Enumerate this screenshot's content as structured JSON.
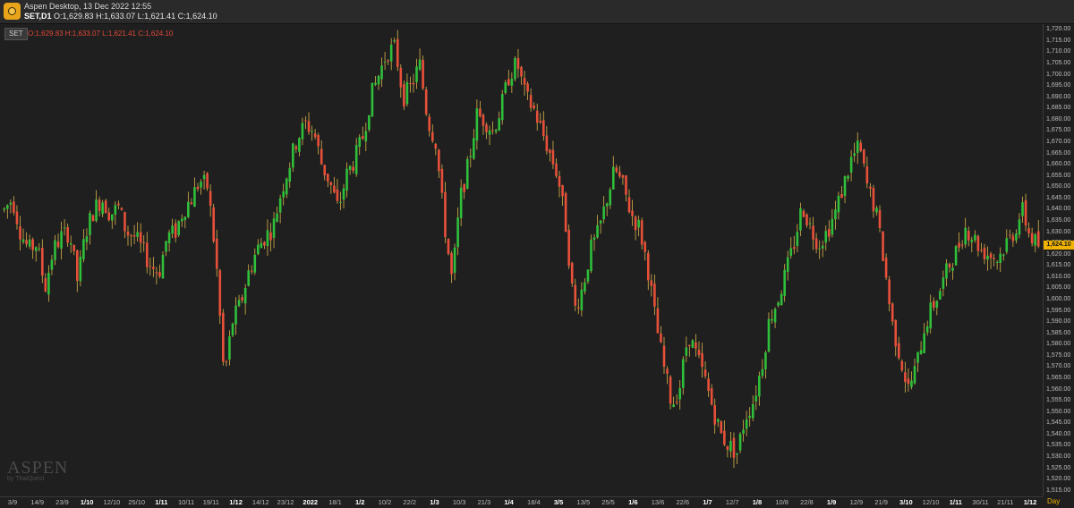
{
  "window": {
    "title": "Aspen Desktop, 13 Dec 2022 12:55",
    "symbol_timeframe": "SET,D1",
    "ohlc": "O:1,629.83 H:1,633.07 L:1,621.41 C:1,624.10"
  },
  "chart_overlay": {
    "symbol_badge": "SET",
    "ohlc": "O:1,629.83  H:1,633.07  L:1,621.41  C:1,624.10"
  },
  "watermark": {
    "brand": "ASPEN",
    "by": "by ThaiQuest"
  },
  "colors": {
    "up": "#2fbf3a",
    "down": "#e8503a",
    "background": "#1f1f1f",
    "last_price_tag": "#f0b400"
  },
  "x_axis_unit": "Day",
  "chart_data": {
    "type": "candlestick",
    "symbol": "SET",
    "timeframe": "D1",
    "last_price": "1,624.10",
    "ylim": [
      1512.5,
      1722.5
    ],
    "y_ticks": [
      "1,720.00",
      "1,715.00",
      "1,710.00",
      "1,705.00",
      "1,700.00",
      "1,695.00",
      "1,690.00",
      "1,685.00",
      "1,680.00",
      "1,675.00",
      "1,670.00",
      "1,665.00",
      "1,660.00",
      "1,655.00",
      "1,650.00",
      "1,645.00",
      "1,640.00",
      "1,635.00",
      "1,630.00",
      "1,625.00",
      "1,620.00",
      "1,615.00",
      "1,610.00",
      "1,605.00",
      "1,600.00",
      "1,595.00",
      "1,590.00",
      "1,585.00",
      "1,580.00",
      "1,575.00",
      "1,570.00",
      "1,565.00",
      "1,560.00",
      "1,555.00",
      "1,550.00",
      "1,545.00",
      "1,540.00",
      "1,535.00",
      "1,530.00",
      "1,525.00",
      "1,520.00",
      "1,515.00"
    ],
    "x_ticks": [
      {
        "label": "3/9",
        "bold": false
      },
      {
        "label": "14/9",
        "bold": false
      },
      {
        "label": "23/9",
        "bold": false
      },
      {
        "label": "1/10",
        "bold": true
      },
      {
        "label": "12/10",
        "bold": false
      },
      {
        "label": "25/10",
        "bold": false
      },
      {
        "label": "1/11",
        "bold": true
      },
      {
        "label": "10/11",
        "bold": false
      },
      {
        "label": "19/11",
        "bold": false
      },
      {
        "label": "1/12",
        "bold": true
      },
      {
        "label": "14/12",
        "bold": false
      },
      {
        "label": "23/12",
        "bold": false
      },
      {
        "label": "2022",
        "bold": true
      },
      {
        "label": "18/1",
        "bold": false
      },
      {
        "label": "1/2",
        "bold": true
      },
      {
        "label": "10/2",
        "bold": false
      },
      {
        "label": "22/2",
        "bold": false
      },
      {
        "label": "1/3",
        "bold": true
      },
      {
        "label": "10/3",
        "bold": false
      },
      {
        "label": "21/3",
        "bold": false
      },
      {
        "label": "1/4",
        "bold": true
      },
      {
        "label": "18/4",
        "bold": false
      },
      {
        "label": "3/5",
        "bold": true
      },
      {
        "label": "13/5",
        "bold": false
      },
      {
        "label": "25/5",
        "bold": false
      },
      {
        "label": "1/6",
        "bold": true
      },
      {
        "label": "13/6",
        "bold": false
      },
      {
        "label": "22/6",
        "bold": false
      },
      {
        "label": "1/7",
        "bold": true
      },
      {
        "label": "12/7",
        "bold": false
      },
      {
        "label": "1/8",
        "bold": true
      },
      {
        "label": "10/8",
        "bold": false
      },
      {
        "label": "22/8",
        "bold": false
      },
      {
        "label": "1/9",
        "bold": true
      },
      {
        "label": "12/9",
        "bold": false
      },
      {
        "label": "21/9",
        "bold": false
      },
      {
        "label": "3/10",
        "bold": true
      },
      {
        "label": "12/10",
        "bold": false
      },
      {
        "label": "1/11",
        "bold": true
      },
      {
        "label": "30/11",
        "bold": false
      },
      {
        "label": "21/11",
        "bold": false
      },
      {
        "label": "1/12",
        "bold": true
      }
    ],
    "close_path": [
      1640,
      1645,
      1630,
      1622,
      1625,
      1605,
      1622,
      1628,
      1630,
      1608,
      1630,
      1640,
      1645,
      1638,
      1641,
      1630,
      1628,
      1622,
      1615,
      1612,
      1628,
      1630,
      1640,
      1645,
      1653,
      1650,
      1618,
      1565,
      1590,
      1598,
      1612,
      1622,
      1628,
      1632,
      1648,
      1660,
      1672,
      1678,
      1675,
      1660,
      1652,
      1640,
      1655,
      1662,
      1672,
      1690,
      1700,
      1710,
      1712,
      1690,
      1695,
      1705,
      1680,
      1670,
      1635,
      1608,
      1645,
      1660,
      1682,
      1680,
      1675,
      1685,
      1700,
      1705,
      1690,
      1685,
      1675,
      1665,
      1655,
      1632,
      1595,
      1605,
      1622,
      1630,
      1645,
      1658,
      1650,
      1638,
      1632,
      1615,
      1590,
      1570,
      1553,
      1562,
      1585,
      1575,
      1565,
      1552,
      1540,
      1535,
      1532,
      1548,
      1555,
      1570,
      1592,
      1600,
      1612,
      1625,
      1642,
      1632,
      1625,
      1630,
      1638,
      1650,
      1662,
      1668,
      1650,
      1640,
      1618,
      1590,
      1575,
      1560,
      1570,
      1588,
      1597,
      1605,
      1615,
      1622,
      1632,
      1628,
      1622,
      1620,
      1618,
      1625,
      1630,
      1640,
      1628,
      1624.1
    ]
  }
}
